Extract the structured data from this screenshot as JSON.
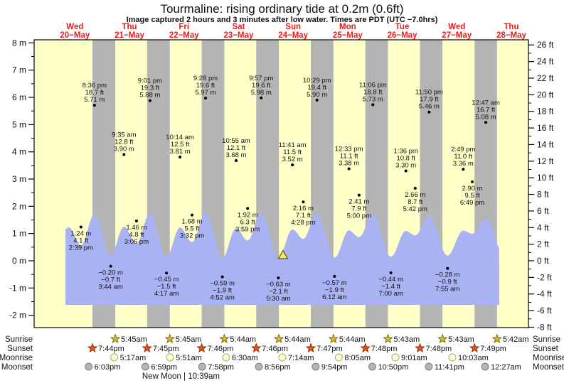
{
  "title": "Tourmaline: rising  ordinary tide at 0.2m (0.6ft)",
  "subtitle": "Image captured 2 hours and 3 minutes after low water. Times are PDT (UTC −7.0hrs)",
  "days": [
    {
      "dow": "Wed",
      "date": "20−May"
    },
    {
      "dow": "Thu",
      "date": "21−May"
    },
    {
      "dow": "Fri",
      "date": "22−May"
    },
    {
      "dow": "Sat",
      "date": "23−May"
    },
    {
      "dow": "Sun",
      "date": "24−May"
    },
    {
      "dow": "Mon",
      "date": "25−May"
    },
    {
      "dow": "Tue",
      "date": "26−May"
    },
    {
      "dow": "Wed",
      "date": "27−May"
    },
    {
      "dow": "Thu",
      "date": "28−May"
    }
  ],
  "axes": {
    "left_unit": "m",
    "left_ticks": [
      8,
      7,
      6,
      5,
      4,
      3,
      2,
      1,
      0,
      -1,
      -2
    ],
    "right_unit": "ft",
    "right_ticks": [
      26,
      24,
      22,
      20,
      18,
      16,
      14,
      12,
      10,
      8,
      6,
      4,
      2,
      0,
      -2,
      -4,
      -6,
      -8
    ]
  },
  "chart_data": {
    "type": "area",
    "series_name": "tide height (m)",
    "y_datum_unit": "m",
    "tide_extremes": [
      {
        "day": 0,
        "hour": 14.65,
        "kind": "low",
        "value_m": 1.24,
        "m_label": "1.24 m",
        "ft_label": "4.1 ft",
        "time_label": "2:39 pm"
      },
      {
        "day": 0,
        "hour": 20.6,
        "kind": "high",
        "value_m": 5.71,
        "m_label": "5.71 m",
        "ft_label": "18.7 ft",
        "time_label": "8:36 pm"
      },
      {
        "day": 1,
        "hour": 3.733,
        "kind": "low",
        "value_m": -0.2,
        "m_label": "−0.20 m",
        "ft_label": "−0.7 ft",
        "time_label": "3:44 am"
      },
      {
        "day": 1,
        "hour": 9.583,
        "kind": "high",
        "value_m": 3.9,
        "m_label": "3.90 m",
        "ft_label": "12.8 ft",
        "time_label": "9:35 am"
      },
      {
        "day": 1,
        "hour": 15.1,
        "kind": "low",
        "value_m": 1.46,
        "m_label": "1.46 m",
        "ft_label": "4.8 ft",
        "time_label": "3:06 pm"
      },
      {
        "day": 1,
        "hour": 21.017,
        "kind": "high",
        "value_m": 5.88,
        "m_label": "5.88 m",
        "ft_label": "19.3 ft",
        "time_label": "9:01 pm"
      },
      {
        "day": 2,
        "hour": 4.283,
        "kind": "low",
        "value_m": -0.45,
        "m_label": "−0.45 m",
        "ft_label": "−1.5 ft",
        "time_label": "4:17 am"
      },
      {
        "day": 2,
        "hour": 10.233,
        "kind": "high",
        "value_m": 3.81,
        "m_label": "3.81 m",
        "ft_label": "12.5 ft",
        "time_label": "10:14 am"
      },
      {
        "day": 2,
        "hour": 15.533,
        "kind": "low",
        "value_m": 1.68,
        "m_label": "1.68 m",
        "ft_label": "5.5 ft",
        "time_label": "3:32 pm"
      },
      {
        "day": 2,
        "hour": 21.467,
        "kind": "high",
        "value_m": 5.97,
        "m_label": "5.97 m",
        "ft_label": "19.6 ft",
        "time_label": "9:28 pm"
      },
      {
        "day": 3,
        "hour": 4.867,
        "kind": "low",
        "value_m": -0.59,
        "m_label": "−0.59 m",
        "ft_label": "−1.9 ft",
        "time_label": "4:52 am"
      },
      {
        "day": 3,
        "hour": 10.917,
        "kind": "high",
        "value_m": 3.68,
        "m_label": "3.68 m",
        "ft_label": "12.1 ft",
        "time_label": "10:55 am"
      },
      {
        "day": 3,
        "hour": 15.983,
        "kind": "low",
        "value_m": 1.92,
        "m_label": "1.92 m",
        "ft_label": "6.3 ft",
        "time_label": "3:59 pm"
      },
      {
        "day": 3,
        "hour": 21.95,
        "kind": "high",
        "value_m": 5.98,
        "m_label": "5.98 m",
        "ft_label": "19.6 ft",
        "time_label": "9:57 pm"
      },
      {
        "day": 4,
        "hour": 5.5,
        "kind": "low",
        "value_m": -0.63,
        "m_label": "−0.63 m",
        "ft_label": "−2.1 ft",
        "time_label": "5:30 am"
      },
      {
        "day": 4,
        "hour": 11.683,
        "kind": "high",
        "value_m": 3.52,
        "m_label": "3.52 m",
        "ft_label": "11.5 ft",
        "time_label": "11:41 am"
      },
      {
        "day": 4,
        "hour": 16.467,
        "kind": "low",
        "value_m": 2.16,
        "m_label": "2.16 m",
        "ft_label": "7.1 ft",
        "time_label": "4:28 pm"
      },
      {
        "day": 4,
        "hour": 22.483,
        "kind": "high",
        "value_m": 5.9,
        "m_label": "5.90 m",
        "ft_label": "19.4 ft",
        "time_label": "10:29 pm"
      },
      {
        "day": 5,
        "hour": 6.2,
        "kind": "low",
        "value_m": -0.57,
        "m_label": "−0.57 m",
        "ft_label": "−1.9 ft",
        "time_label": "6:12 am"
      },
      {
        "day": 5,
        "hour": 12.55,
        "kind": "high",
        "value_m": 3.38,
        "m_label": "3.38 m",
        "ft_label": "11.1 ft",
        "time_label": "12:33 pm"
      },
      {
        "day": 5,
        "hour": 17.0,
        "kind": "low",
        "value_m": 2.41,
        "m_label": "2.41 m",
        "ft_label": "7.9 ft",
        "time_label": "5:00 pm"
      },
      {
        "day": 5,
        "hour": 23.1,
        "kind": "high",
        "value_m": 5.73,
        "m_label": "5.73 m",
        "ft_label": "18.8 ft",
        "time_label": "11:06 pm"
      },
      {
        "day": 6,
        "hour": 7.0,
        "kind": "low",
        "value_m": -0.44,
        "m_label": "−0.44 m",
        "ft_label": "−1.4 ft",
        "time_label": "7:00 am"
      },
      {
        "day": 6,
        "hour": 13.6,
        "kind": "high",
        "value_m": 3.3,
        "m_label": "3.30 m",
        "ft_label": "10.8 ft",
        "time_label": "1:36 pm"
      },
      {
        "day": 6,
        "hour": 17.7,
        "kind": "low",
        "value_m": 2.66,
        "m_label": "2.66 m",
        "ft_label": "8.7 ft",
        "time_label": "5:42 pm"
      },
      {
        "day": 6,
        "hour": 23.833,
        "kind": "high",
        "value_m": 5.46,
        "m_label": "5.46 m",
        "ft_label": "17.9 ft",
        "time_label": "11:50 pm"
      },
      {
        "day": 7,
        "hour": 7.917,
        "kind": "low",
        "value_m": -0.28,
        "m_label": "−0.28 m",
        "ft_label": "−0.9 ft",
        "time_label": "7:55 am"
      },
      {
        "day": 7,
        "hour": 14.817,
        "kind": "high",
        "value_m": 3.36,
        "m_label": "3.36 m",
        "ft_label": "11.0 ft",
        "time_label": "2:49 pm"
      },
      {
        "day": 7,
        "hour": 18.817,
        "kind": "low",
        "value_m": 2.9,
        "m_label": "2.90 m",
        "ft_label": "9.5 ft",
        "time_label": "6:49 pm"
      },
      {
        "day": 8,
        "hour": 0.783,
        "kind": "high",
        "value_m": 5.08,
        "m_label": "5.08 m",
        "ft_label": "16.7 ft",
        "time_label": "12:47 am"
      }
    ],
    "curve_edges": {
      "pre_extreme": {
        "day": 0,
        "hour": 2.8,
        "value_m": -0.2
      },
      "unlabeled_first_high": {
        "day": 0,
        "hour": 9.2,
        "value_m": 3.85
      },
      "post_extreme": {
        "day": 8,
        "hour": 8.7,
        "value_m": -0.1
      },
      "clip_start": {
        "day": 0,
        "hour": 7.83
      },
      "clip_end": {
        "day": 8,
        "hour": 6.73
      }
    },
    "current_marker": {
      "day": 4,
      "hour": 7.55,
      "height_m": 0.2
    }
  },
  "astro": {
    "row_labels": [
      "Sunrise",
      "Sunset",
      "Moonrise",
      "Moonset"
    ],
    "sunrise": [
      {
        "day": 1,
        "hour": 5.75,
        "label": "5:45am"
      },
      {
        "day": 2,
        "hour": 5.75,
        "label": "5:45am"
      },
      {
        "day": 3,
        "hour": 5.733,
        "label": "5:44am"
      },
      {
        "day": 4,
        "hour": 5.733,
        "label": "5:44am"
      },
      {
        "day": 5,
        "hour": 5.733,
        "label": "5:44am"
      },
      {
        "day": 6,
        "hour": 5.717,
        "label": "5:43am"
      },
      {
        "day": 7,
        "hour": 5.717,
        "label": "5:43am"
      },
      {
        "day": 8,
        "hour": 5.7,
        "label": "5:42am"
      }
    ],
    "sunset": [
      {
        "day": 0,
        "hour": 19.733,
        "label": "7:44pm"
      },
      {
        "day": 1,
        "hour": 19.75,
        "label": "7:45pm"
      },
      {
        "day": 2,
        "hour": 19.767,
        "label": "7:46pm"
      },
      {
        "day": 3,
        "hour": 19.767,
        "label": "7:46pm"
      },
      {
        "day": 4,
        "hour": 19.783,
        "label": "7:47pm"
      },
      {
        "day": 5,
        "hour": 19.8,
        "label": "7:48pm"
      },
      {
        "day": 6,
        "hour": 19.8,
        "label": "7:48pm"
      },
      {
        "day": 7,
        "hour": 19.817,
        "label": "7:49pm"
      }
    ],
    "moonrise": [
      {
        "day": 1,
        "hour": 5.283,
        "label": "5:17am"
      },
      {
        "day": 2,
        "hour": 5.85,
        "label": "5:51am"
      },
      {
        "day": 3,
        "hour": 6.5,
        "label": "6:30am"
      },
      {
        "day": 4,
        "hour": 7.233,
        "label": "7:14am"
      },
      {
        "day": 5,
        "hour": 8.083,
        "label": "8:05am"
      },
      {
        "day": 6,
        "hour": 9.017,
        "label": "9:01am"
      },
      {
        "day": 7,
        "hour": 10.05,
        "label": "10:03am"
      }
    ],
    "moonset": [
      {
        "day": 0,
        "hour": 18.05,
        "label": "6:03pm"
      },
      {
        "day": 1,
        "hour": 18.983,
        "label": "6:59pm"
      },
      {
        "day": 2,
        "hour": 19.967,
        "label": "7:58pm"
      },
      {
        "day": 3,
        "hour": 20.933,
        "label": "8:56pm"
      },
      {
        "day": 4,
        "hour": 21.9,
        "label": "9:54pm"
      },
      {
        "day": 5,
        "hour": 22.833,
        "label": "10:50pm"
      },
      {
        "day": 6,
        "hour": 23.683,
        "label": "11:41pm"
      },
      {
        "day": 8,
        "hour": 0.45,
        "label": "12:27am"
      }
    ],
    "footer": {
      "text": "New Moon | 10:39am",
      "day": 2,
      "hour": 10.65
    }
  },
  "colors": {
    "day_bg": "#ffffc8",
    "night_bg": "#b4b4b4",
    "tide_fill": "#a9b2f2",
    "day_label": "#f01818",
    "annotation": "#111111",
    "marker_fill": "#f0e95e",
    "sunrise_star": "#d9bc2b",
    "sunrise_star_stroke": "#7d6c0f",
    "sunset_star": "#e8561c",
    "sunset_star_stroke": "#8f2a05",
    "moonrise_circle": "#ffffd9",
    "moonrise_circle_stroke": "#b0a95c",
    "moonset_circle": "#b5b5b5",
    "moonset_circle_stroke": "#7f7f7f"
  }
}
